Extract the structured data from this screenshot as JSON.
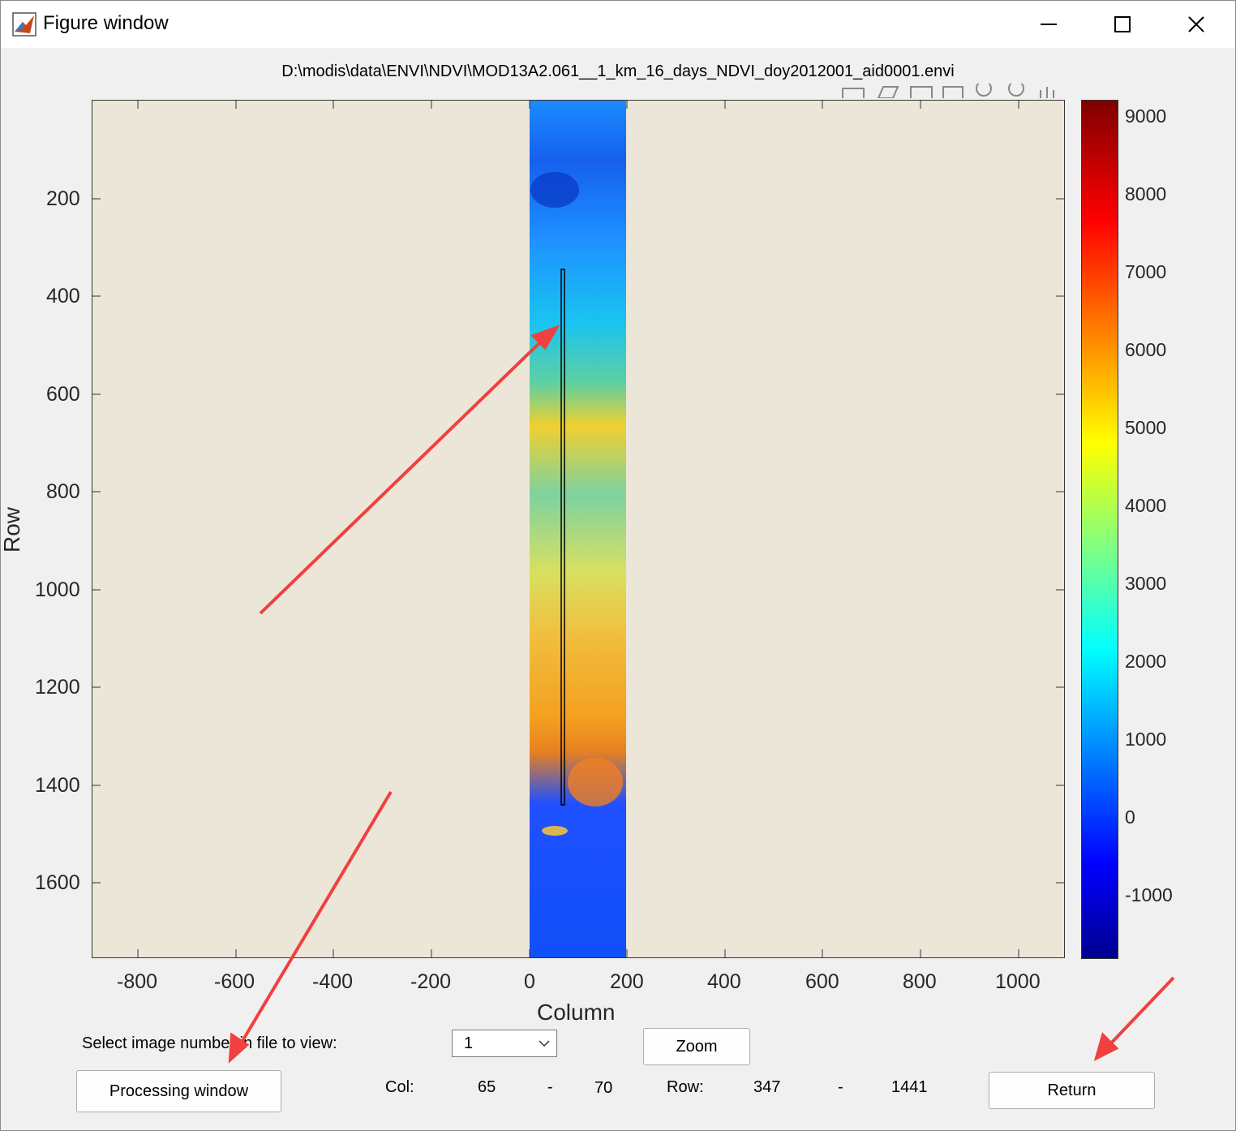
{
  "window": {
    "title": "Figure window",
    "icon": "matlab-icon"
  },
  "figure": {
    "filepath": "D:\\modis\\data\\ENVI\\NDVI\\MOD13A2.061__1_km_16_days_NDVI_doy2012001_aid0001.envi",
    "xlabel": "Column",
    "ylabel": "Row",
    "xticks": [
      "-800",
      "-600",
      "-400",
      "-200",
      "0",
      "200",
      "400",
      "600",
      "800",
      "1000"
    ],
    "yticks": [
      "200",
      "400",
      "600",
      "800",
      "1000",
      "1200",
      "1400",
      "1600"
    ],
    "colorbar_ticks": [
      "9000",
      "8000",
      "7000",
      "6000",
      "5000",
      "4000",
      "3000",
      "2000",
      "1000",
      "0",
      "-1000"
    ]
  },
  "controls": {
    "select_label": "Select image number in file to view:",
    "select_value": "1",
    "zoom_label": "Zoom",
    "processing_label": "Processing window",
    "return_label": "Return",
    "col_label": "Col:",
    "col_from": "65",
    "col_dash": "-",
    "col_to": "70",
    "row_label": "Row:",
    "row_from": "347",
    "row_dash": "-",
    "row_to": "1441"
  },
  "colors": {
    "arrow": "#f04040",
    "axes_bg": "#ece6d8"
  }
}
